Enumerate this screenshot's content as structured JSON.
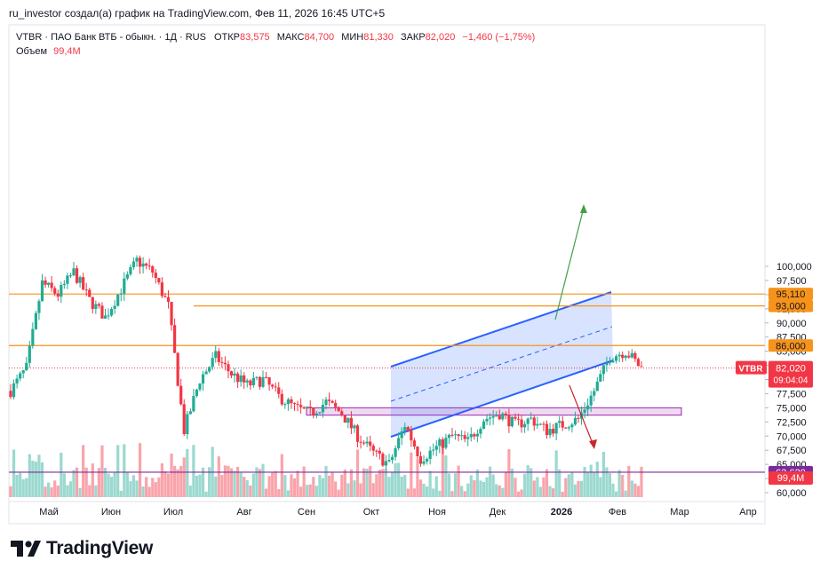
{
  "header": {
    "attribution": "ru_investor создал(а) график на TradingView.com, Фев 11, 2026 16:45 UTC+5",
    "symbol_line": "VTBR · ПАО Банк ВТБ - обыкн. · 1Д · RUS",
    "open_label": "ОТКР",
    "open_value": "83,575",
    "high_label": "МАКС",
    "high_value": "84,700",
    "low_label": "МИН",
    "low_value": "81,330",
    "close_label": "ЗАКР",
    "close_value": "82,020",
    "change": "−1,460 (−1,75%)",
    "volume_label": "Объем",
    "volume_value": "99,4M"
  },
  "brand": {
    "name": "TradingView"
  },
  "colors": {
    "up": "#22ab94",
    "down": "#f23645",
    "orange": "#f7931a",
    "purple": "#7b2a9b",
    "channel": "#2962ff",
    "accent_red": "#e0313a"
  },
  "chart_data": {
    "type": "candlestick",
    "symbol": "VTBR",
    "x_axis_labels": [
      "Май",
      "Июн",
      "Июл",
      "Авг",
      "Сен",
      "Окт",
      "Ноя",
      "Дек",
      "2026",
      "Фев",
      "Мар",
      "Апр"
    ],
    "y_axis_ticks": [
      "100,000",
      "97,500",
      "95,000",
      "92,500",
      "90,000",
      "87,500",
      "85,000",
      "82,500",
      "80,000",
      "77,500",
      "75,000",
      "72,500",
      "70,000",
      "67,500",
      "65,000",
      "62,500",
      "60,000"
    ],
    "y_range": [
      59.5,
      101.5
    ],
    "key_levels": [
      {
        "label": "95,110",
        "value": 95.11,
        "color": "#f7931a"
      },
      {
        "label": "93,000",
        "value": 93.0,
        "color": "#f7931a"
      },
      {
        "label": "86,000",
        "value": 86.0,
        "color": "#f7931a"
      },
      {
        "label": "63,620",
        "value": 63.62,
        "color": "#7b2a9b"
      }
    ],
    "last_price": {
      "symbol_tag": "VTBR",
      "price": "82,020",
      "countdown": "09:04:04",
      "value": 82.02
    },
    "volume_tag": "99,4M",
    "zone": {
      "low": 73.7,
      "high": 75.0,
      "start": "Сен",
      "end": "Фев"
    },
    "price_path": [
      [
        "Апр",
        78
      ],
      [
        "Апр",
        82
      ],
      [
        "Май",
        97
      ],
      [
        "Май",
        95
      ],
      [
        "Май",
        99
      ],
      [
        "Июн",
        94
      ],
      [
        "Июн",
        91
      ],
      [
        "Июн",
        96
      ],
      [
        "Июл",
        101
      ],
      [
        "Июл",
        99
      ],
      [
        "Июл",
        93
      ],
      [
        "Июл",
        71
      ],
      [
        "Июл",
        80
      ],
      [
        "Авг",
        84
      ],
      [
        "Авг",
        81
      ],
      [
        "Авг",
        79
      ],
      [
        "Авг",
        80
      ],
      [
        "Авг",
        77
      ],
      [
        "Сен",
        75
      ],
      [
        "Сен",
        74
      ],
      [
        "Сен",
        76
      ],
      [
        "Сен",
        74
      ],
      [
        "Окт",
        70
      ],
      [
        "Окт",
        67
      ],
      [
        "Окт",
        65
      ],
      [
        "Окт",
        72
      ],
      [
        "Ноя",
        66
      ],
      [
        "Ноя",
        68
      ],
      [
        "Ноя",
        70
      ],
      [
        "Дек",
        69
      ],
      [
        "Дек",
        73
      ],
      [
        "Дек",
        74
      ],
      [
        "Дек",
        72
      ],
      [
        "2026",
        73
      ],
      [
        "2026",
        71
      ],
      [
        "2026",
        72
      ],
      [
        "Фев",
        73
      ],
      [
        "Фев",
        78
      ],
      [
        "Фев",
        84
      ],
      [
        "Фев",
        85
      ],
      [
        "Фев",
        82
      ]
    ]
  }
}
